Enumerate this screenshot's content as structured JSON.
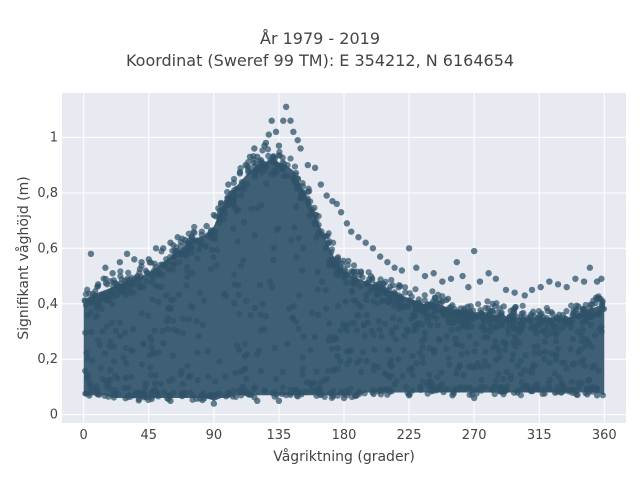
{
  "chart_data": {
    "type": "scatter",
    "title": "År 1979 - 2019",
    "subtitle": "Koordinat (Sweref 99 TM): E 354212, N 6164654",
    "xlabel": "Vågriktning (grader)",
    "ylabel": "Signifikant våghöjd (m)",
    "xlim": [
      -15,
      375
    ],
    "ylim": [
      -0.03,
      1.16
    ],
    "xticks": [
      0,
      45,
      90,
      135,
      180,
      225,
      270,
      315,
      360
    ],
    "xtick_labels": [
      "0",
      "45",
      "90",
      "135",
      "180",
      "225",
      "270",
      "315",
      "360"
    ],
    "yticks": [
      0,
      0.2,
      0.4,
      0.6,
      0.8,
      1
    ],
    "ytick_labels": [
      "0",
      "0,2",
      "0,4",
      "0,6",
      "0,8",
      "1"
    ],
    "grid": true,
    "marker_color": "#2f5369",
    "background_color": "#e8eaf2",
    "series": [
      {
        "x": [
          0,
          5,
          10,
          15,
          20,
          25,
          30,
          35,
          40,
          45,
          50,
          55,
          60,
          65,
          70,
          75,
          80,
          85,
          90,
          95,
          100,
          105,
          110,
          115,
          120,
          125,
          130,
          135,
          140,
          145,
          150,
          155,
          160,
          165,
          170,
          175,
          180,
          185,
          190,
          195,
          200,
          205,
          210,
          215,
          220,
          225,
          230,
          235,
          240,
          245,
          250,
          255,
          260,
          265,
          270,
          275,
          280,
          285,
          290,
          295,
          300,
          305,
          310,
          315,
          320,
          325,
          330,
          335,
          340,
          345,
          350,
          355,
          360
        ],
        "y_min": [
          0.07,
          0.07,
          0.07,
          0.07,
          0.06,
          0.06,
          0.06,
          0.06,
          0.06,
          0.06,
          0.06,
          0.06,
          0.06,
          0.06,
          0.06,
          0.06,
          0.06,
          0.06,
          0.05,
          0.06,
          0.06,
          0.07,
          0.07,
          0.07,
          0.07,
          0.07,
          0.07,
          0.07,
          0.07,
          0.07,
          0.07,
          0.07,
          0.07,
          0.07,
          0.07,
          0.07,
          0.07,
          0.07,
          0.07,
          0.08,
          0.08,
          0.08,
          0.08,
          0.08,
          0.08,
          0.08,
          0.08,
          0.08,
          0.08,
          0.08,
          0.08,
          0.08,
          0.08,
          0.08,
          0.08,
          0.08,
          0.08,
          0.08,
          0.08,
          0.08,
          0.08,
          0.08,
          0.08,
          0.08,
          0.08,
          0.08,
          0.08,
          0.08,
          0.08,
          0.08,
          0.08,
          0.08,
          0.07
        ],
        "y_max": [
          0.4,
          0.42,
          0.44,
          0.45,
          0.46,
          0.47,
          0.48,
          0.49,
          0.5,
          0.51,
          0.53,
          0.55,
          0.57,
          0.59,
          0.61,
          0.63,
          0.64,
          0.65,
          0.68,
          0.74,
          0.79,
          0.82,
          0.85,
          0.88,
          0.9,
          0.91,
          0.92,
          0.91,
          0.9,
          0.88,
          0.83,
          0.78,
          0.72,
          0.66,
          0.6,
          0.55,
          0.52,
          0.5,
          0.49,
          0.48,
          0.47,
          0.46,
          0.45,
          0.44,
          0.43,
          0.42,
          0.41,
          0.4,
          0.4,
          0.4,
          0.39,
          0.38,
          0.38,
          0.37,
          0.37,
          0.37,
          0.36,
          0.36,
          0.36,
          0.35,
          0.35,
          0.35,
          0.35,
          0.35,
          0.35,
          0.35,
          0.35,
          0.35,
          0.36,
          0.37,
          0.38,
          0.39,
          0.4
        ]
      }
    ],
    "outliers": [
      [
        5,
        0.58
      ],
      [
        10,
        0.47
      ],
      [
        15,
        0.53
      ],
      [
        20,
        0.51
      ],
      [
        25,
        0.55
      ],
      [
        30,
        0.58
      ],
      [
        35,
        0.56
      ],
      [
        40,
        0.55
      ],
      [
        45,
        0.56
      ],
      [
        50,
        0.6
      ],
      [
        55,
        0.6
      ],
      [
        60,
        0.62
      ],
      [
        65,
        0.64
      ],
      [
        70,
        0.63
      ],
      [
        75,
        0.64
      ],
      [
        85,
        0.68
      ],
      [
        88,
        0.66
      ],
      [
        90,
        0.72
      ],
      [
        95,
        0.76
      ],
      [
        100,
        0.83
      ],
      [
        103,
        0.8
      ],
      [
        108,
        0.87
      ],
      [
        112,
        0.9
      ],
      [
        115,
        0.93
      ],
      [
        118,
        0.96
      ],
      [
        120,
        0.93
      ],
      [
        125,
        0.97
      ],
      [
        126,
        0.98
      ],
      [
        128,
        1.01
      ],
      [
        130,
        1.06
      ],
      [
        133,
        1.02
      ],
      [
        135,
        0.97
      ],
      [
        138,
        1.06
      ],
      [
        140,
        1.11
      ],
      [
        143,
        1.06
      ],
      [
        145,
        1.02
      ],
      [
        148,
        0.99
      ],
      [
        150,
        0.96
      ],
      [
        155,
        0.9
      ],
      [
        160,
        0.89
      ],
      [
        164,
        0.83
      ],
      [
        168,
        0.79
      ],
      [
        172,
        0.77
      ],
      [
        175,
        0.76
      ],
      [
        178,
        0.73
      ],
      [
        182,
        0.69
      ],
      [
        185,
        0.66
      ],
      [
        190,
        0.64
      ],
      [
        195,
        0.62
      ],
      [
        200,
        0.6
      ],
      [
        205,
        0.57
      ],
      [
        210,
        0.55
      ],
      [
        215,
        0.53
      ],
      [
        220,
        0.52
      ],
      [
        225,
        0.6
      ],
      [
        230,
        0.53
      ],
      [
        236,
        0.5
      ],
      [
        242,
        0.51
      ],
      [
        248,
        0.48
      ],
      [
        254,
        0.49
      ],
      [
        258,
        0.55
      ],
      [
        262,
        0.5
      ],
      [
        266,
        0.46
      ],
      [
        270,
        0.59
      ],
      [
        274,
        0.48
      ],
      [
        280,
        0.51
      ],
      [
        285,
        0.49
      ],
      [
        292,
        0.45
      ],
      [
        298,
        0.44
      ],
      [
        305,
        0.43
      ],
      [
        310,
        0.45
      ],
      [
        316,
        0.46
      ],
      [
        322,
        0.48
      ],
      [
        328,
        0.47
      ],
      [
        334,
        0.46
      ],
      [
        340,
        0.49
      ],
      [
        346,
        0.48
      ],
      [
        350,
        0.53
      ],
      [
        355,
        0.48
      ],
      [
        358,
        0.49
      ]
    ],
    "low_outliers": [
      [
        60,
        0.05
      ],
      [
        90,
        0.04
      ],
      [
        120,
        0.05
      ],
      [
        135,
        0.05
      ],
      [
        180,
        0.06
      ],
      [
        225,
        0.07
      ],
      [
        255,
        0.07
      ],
      [
        270,
        0.06
      ],
      [
        300,
        0.08
      ],
      [
        330,
        0.08
      ],
      [
        355,
        0.07
      ]
    ]
  }
}
